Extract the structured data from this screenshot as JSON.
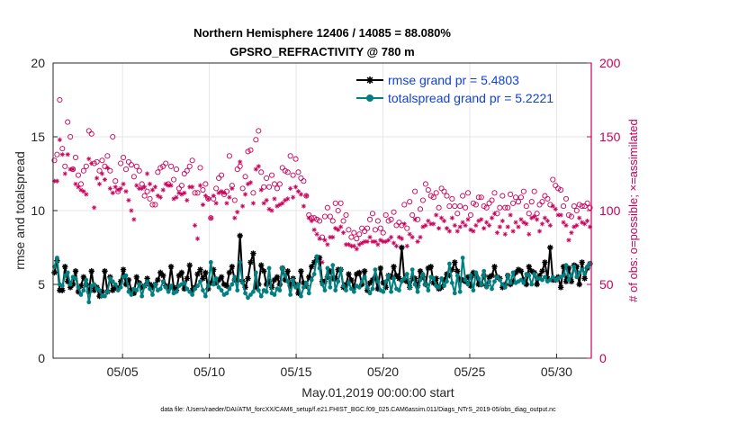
{
  "chart_data": {
    "type": "line",
    "title_line1": "Northern Hemisphere 12406 / 14085 = 88.080%",
    "title_line2": "GPSRO_REFRACTIVITY @ 780 m",
    "xlabel": "May.01,2019 00:00:00 start",
    "ylabel_left": "rmse and totalspread",
    "ylabel_right": "# of obs: o=possible; ×=assimilated",
    "x_range_days": [
      1,
      32
    ],
    "ylim_left": [
      0,
      20
    ],
    "ylim_right": [
      0,
      200
    ],
    "x_ticks": [
      {
        "day": 5,
        "label": "05/05"
      },
      {
        "day": 10,
        "label": "05/10"
      },
      {
        "day": 15,
        "label": "05/15"
      },
      {
        "day": 20,
        "label": "05/20"
      },
      {
        "day": 25,
        "label": "05/25"
      },
      {
        "day": 30,
        "label": "05/30"
      }
    ],
    "y_ticks_left": [
      "0",
      "5",
      "10",
      "15",
      "20"
    ],
    "y_ticks_right": [
      "0",
      "50",
      "100",
      "150",
      "200"
    ],
    "legend": [
      {
        "label": "rmse grand pr = 5.4803",
        "color": "#000000"
      },
      {
        "label": "totalspread grand pr = 5.2221",
        "color": "#008080"
      }
    ],
    "colors": {
      "rmse": "#000000",
      "spread": "#008080",
      "obs": "#c8005a",
      "grid": "#e6e6e6"
    },
    "rmse": [
      5.8,
      6.6,
      4.6,
      4.6,
      6.2,
      5.2,
      4.8,
      5.0,
      5.9,
      4.5,
      4.9,
      5.5,
      5.0,
      4.5,
      5.9,
      4.6,
      4.8,
      4.2,
      4.5,
      5.9,
      4.5,
      5.5,
      4.6,
      4.8,
      4.7,
      5.2,
      6.0,
      5.0,
      5.3,
      4.6,
      4.4,
      5.5,
      5.1,
      4.8,
      4.9,
      5.4,
      5.0,
      4.8,
      5.0,
      5.3,
      5.8,
      5.6,
      4.9,
      4.7,
      6.2,
      4.8,
      4.6,
      5.6,
      5.8,
      4.7,
      5.4,
      6.3,
      4.6,
      4.8,
      5.7,
      6.0,
      5.4,
      5.8,
      4.7,
      5.1,
      6.0,
      5.1,
      5.3,
      5.5,
      5.0,
      4.9,
      5.8,
      6.2,
      5.3,
      5.3,
      8.3,
      5.2,
      4.8,
      5.4,
      6.5,
      7.1,
      4.8,
      5.0,
      6.3,
      5.9,
      5.0,
      5.2,
      4.8,
      5.3,
      5.5,
      5.0,
      6.1,
      5.3,
      5.9,
      4.9,
      5.4,
      5.0,
      4.4,
      5.9,
      5.1,
      4.9,
      5.5,
      6.2,
      6.5,
      6.8,
      6.8,
      5.2,
      5.2,
      5.5,
      5.9,
      5.4,
      5.4,
      6.0,
      6.0,
      4.8,
      5.0,
      5.7,
      5.3,
      4.8,
      5.7,
      5.8,
      5.0,
      5.9,
      4.6,
      5.1,
      5.3,
      5.5,
      4.7,
      6.1,
      5.1,
      4.8,
      5.6,
      5.5,
      6.2,
      5.6,
      5.4,
      7.5,
      5.3,
      5.2,
      4.8,
      5.4,
      5.4,
      4.9,
      5.9,
      5.5,
      5.0,
      6.1,
      6.2,
      5.1,
      5.4,
      4.7,
      4.8,
      5.3,
      5.7,
      5.6,
      6.0,
      6.5,
      5.9,
      5.3,
      5.3,
      5.2,
      5.5,
      4.9,
      5.8,
      5.6,
      5.0,
      5.0,
      5.6,
      4.9,
      5.5,
      5.6,
      6.2,
      5.5,
      5.4,
      4.8,
      5.0,
      5.6,
      5.0,
      5.2,
      5.8,
      6.0,
      5.9,
      5.3,
      5.0,
      6.2,
      5.9,
      5.8,
      5.0,
      5.6,
      5.9,
      6.5,
      5.4,
      7.5,
      5.3,
      5.3,
      5.5,
      4.8,
      6.2,
      5.2,
      6.1,
      5.2,
      6.3,
      6.2,
      5.0,
      6.5,
      5.4,
      6.1,
      6.4
    ],
    "spread": [
      6.2,
      6.8,
      5.0,
      4.9,
      5.6,
      5.8,
      5.0,
      5.5,
      5.4,
      4.8,
      4.3,
      4.6,
      5.3,
      3.8,
      4.9,
      5.0,
      4.7,
      4.6,
      4.2,
      4.2,
      4.5,
      5.4,
      5.2,
      5.0,
      4.6,
      4.8,
      5.5,
      5.6,
      4.5,
      4.3,
      4.7,
      4.6,
      5.0,
      4.2,
      4.9,
      5.2,
      4.7,
      4.3,
      5.0,
      4.6,
      4.7,
      5.2,
      4.8,
      4.5,
      4.9,
      4.4,
      4.5,
      4.9,
      5.0,
      5.1,
      4.7,
      4.5,
      4.3,
      4.7,
      4.9,
      5.2,
      4.6,
      4.2,
      4.9,
      6.5,
      5.0,
      5.4,
      4.8,
      4.6,
      4.3,
      4.4,
      4.7,
      5.0,
      5.5,
      4.6,
      6.5,
      5.1,
      4.4,
      4.1,
      4.3,
      4.5,
      5.8,
      4.6,
      4.2,
      4.6,
      4.5,
      6.1,
      4.4,
      4.3,
      4.7,
      4.6,
      6.1,
      5.6,
      5.2,
      4.3,
      5.3,
      4.8,
      5.0,
      4.2,
      4.8,
      5.1,
      4.4,
      5.3,
      5.7,
      6.9,
      6.1,
      5.0,
      4.6,
      6.1,
      4.8,
      6.3,
      4.6,
      5.2,
      6.0,
      4.9,
      4.6,
      5.1,
      4.7,
      4.5,
      4.9,
      4.8,
      5.2,
      5.5,
      4.8,
      4.4,
      4.7,
      6.0,
      5.2,
      4.6,
      4.5,
      5.2,
      5.6,
      4.5,
      5.4,
      4.7,
      4.6,
      5.2,
      5.4,
      5.7,
      4.8,
      6.0,
      5.0,
      4.5,
      5.3,
      5.7,
      5.0,
      4.6,
      5.5,
      5.4,
      4.9,
      4.8,
      5.4,
      4.9,
      5.2,
      6.4,
      5.1,
      4.4,
      5.6,
      4.5,
      6.8,
      5.3,
      5.0,
      5.6,
      4.6,
      5.8,
      5.4,
      5.0,
      5.9,
      4.8,
      5.2,
      4.7,
      5.2,
      5.5,
      5.3,
      5.0,
      4.8,
      5.6,
      5.1,
      5.8,
      5.1,
      5.2,
      5.3,
      5.1,
      5.7,
      5.6,
      5.0,
      5.7,
      5.4,
      5.4,
      5.3,
      5.5,
      5.2,
      5.3,
      5.5,
      5.3,
      5.4,
      5.5,
      5.6,
      6.3,
      5.3,
      5.6,
      6.2,
      5.5,
      5.8,
      6.0,
      5.7,
      6.2,
      6.4
    ],
    "obs_possible": [
      134,
      138,
      175,
      142,
      130,
      160,
      150,
      128,
      136,
      124,
      118,
      127,
      130,
      154,
      152,
      132,
      133,
      127,
      134,
      130,
      137,
      127,
      150,
      120,
      113,
      132,
      136,
      128,
      133,
      131,
      123,
      130,
      127,
      118,
      110,
      113,
      108,
      104,
      104,
      126,
      129,
      130,
      132,
      118,
      130,
      121,
      128,
      115,
      117,
      125,
      127,
      130,
      134,
      112,
      112,
      129,
      114,
      118,
      108,
      95,
      108,
      115,
      122,
      124,
      111,
      113,
      137,
      117,
      107,
      128,
      130,
      115,
      123,
      140,
      141,
      112,
      148,
      154,
      126,
      116,
      122,
      116,
      124,
      118,
      115,
      118,
      129,
      127,
      126,
      137,
      124,
      135,
      126,
      122,
      120,
      110,
      97,
      95,
      95,
      94,
      93,
      82,
      96,
      102,
      96,
      93,
      105,
      100,
      105,
      93,
      97,
      87,
      82,
      85,
      81,
      84,
      88,
      86,
      88,
      94,
      98,
      87,
      93,
      88,
      85,
      97,
      93,
      94,
      99,
      90,
      92,
      90,
      104,
      88,
      106,
      97,
      113,
      94,
      101,
      107,
      118,
      114,
      110,
      109,
      112,
      102,
      115,
      113,
      110,
      103,
      108,
      103,
      98,
      103,
      110,
      102,
      112,
      97,
      105,
      104,
      109,
      109,
      103,
      102,
      105,
      107,
      112,
      98,
      102,
      110,
      102,
      102,
      111,
      105,
      109,
      106,
      109,
      113,
      103,
      98,
      106,
      113,
      98,
      104,
      106,
      110,
      108,
      104,
      121,
      117,
      115,
      114,
      103,
      108,
      97,
      96,
      103,
      100,
      104,
      103,
      103,
      105,
      102
    ],
    "obs_assimilated": [
      120,
      120,
      148,
      138,
      125,
      138,
      128,
      128,
      118,
      116,
      114,
      113,
      111,
      135,
      132,
      102,
      122,
      118,
      125,
      121,
      129,
      115,
      112,
      116,
      114,
      115,
      118,
      113,
      107,
      100,
      94,
      117,
      115,
      115,
      116,
      125,
      118,
      114,
      116,
      110,
      109,
      114,
      118,
      117,
      117,
      108,
      109,
      112,
      111,
      112,
      107,
      116,
      116,
      90,
      81,
      117,
      104,
      110,
      108,
      95,
      110,
      105,
      112,
      113,
      112,
      105,
      109,
      115,
      95,
      99,
      133,
      103,
      111,
      118,
      119,
      105,
      128,
      130,
      114,
      105,
      107,
      101,
      100,
      108,
      103,
      104,
      105,
      107,
      108,
      115,
      109,
      116,
      113,
      111,
      103,
      110,
      95,
      93,
      87,
      84,
      81,
      65,
      80,
      77,
      82,
      82,
      88,
      87,
      89,
      85,
      77,
      77,
      76,
      76,
      74,
      77,
      78,
      79,
      79,
      82,
      79,
      79,
      77,
      80,
      79,
      79,
      80,
      82,
      78,
      76,
      82,
      81,
      91,
      76,
      84,
      82,
      94,
      79,
      82,
      89,
      90,
      93,
      91,
      91,
      97,
      88,
      95,
      93,
      88,
      86,
      95,
      90,
      86,
      89,
      92,
      90,
      94,
      87,
      86,
      90,
      93,
      94,
      88,
      92,
      90,
      95,
      98,
      85,
      89,
      93,
      84,
      89,
      97,
      86,
      92,
      89,
      94,
      92,
      91,
      84,
      95,
      96,
      94,
      86,
      91,
      95,
      93,
      90,
      103,
      101,
      97,
      97,
      92,
      90,
      80,
      85,
      89,
      90,
      95,
      92,
      91,
      93,
      89
    ]
  },
  "footer": "data file: /Users/raeder/DAI/ATM_forcXX/CAM6_setup/f.e21.FHIST_BGC.f09_025.CAM6assim.011/Diags_NTrS_2019-05/obs_diag_output.nc"
}
